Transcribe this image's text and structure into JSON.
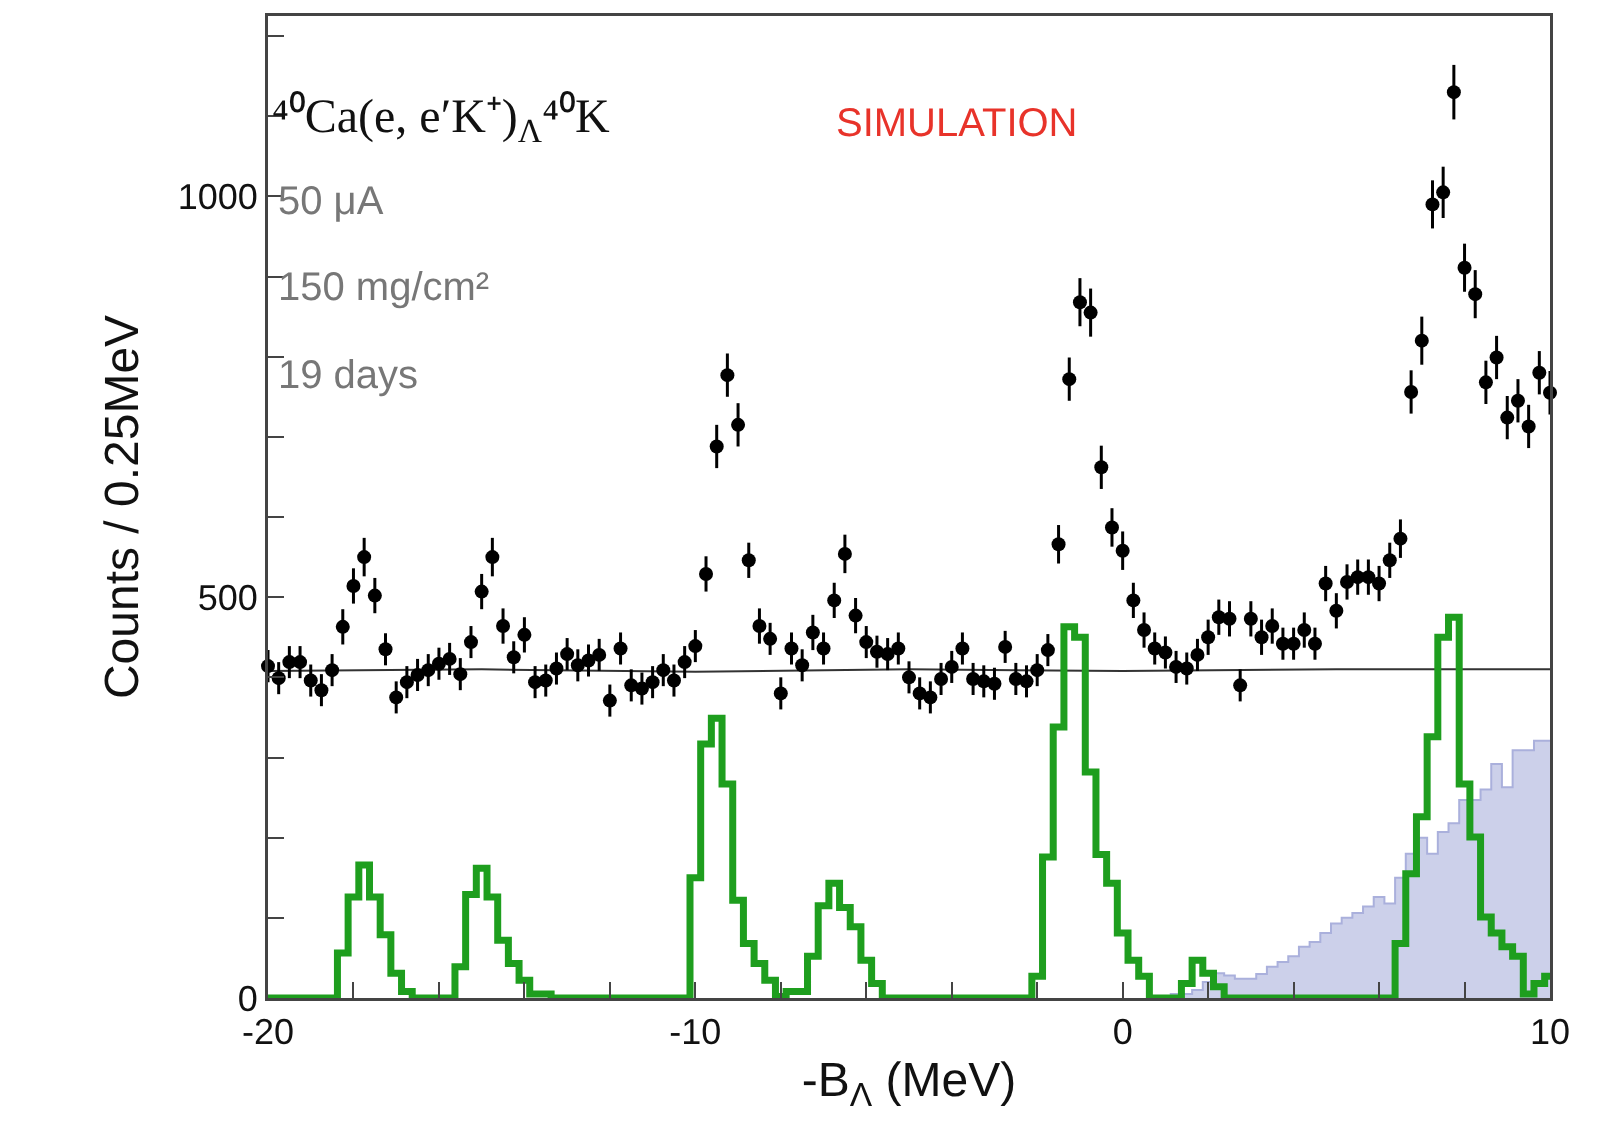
{
  "chart_data": {
    "type": "scatter",
    "xlabel": "-B$_{Λ}$ (MeV)",
    "ylabel": "Counts / 0.25MeV",
    "annotations": [
      "⁴⁰Ca(e, e′K⁺)$_{Λ}$⁴⁰K",
      "50 μA",
      "150 mg/cm²",
      "19 days",
      "SIMULATION"
    ],
    "x": [
      -20,
      -19.75,
      -19.5,
      -19.25,
      -19,
      -18.75,
      -18.5,
      -18.25,
      -18,
      -17.75,
      -17.5,
      -17.25,
      -17,
      -16.75,
      -16.5,
      -16.25,
      -16,
      -15.75,
      -15.5,
      -15.25,
      -15,
      -14.75,
      -14.5,
      -14.25,
      -14,
      -13.75,
      -13.5,
      -13.25,
      -13,
      -12.75,
      -12.5,
      -12.25,
      -12,
      -11.75,
      -11.5,
      -11.25,
      -11,
      -10.75,
      -10.5,
      -10.25,
      -10,
      -9.75,
      -9.5,
      -9.25,
      -9,
      -8.75,
      -8.5,
      -8.25,
      -8,
      -7.75,
      -7.5,
      -7.25,
      -7,
      -6.75,
      -6.5,
      -6.25,
      -6,
      -5.75,
      -5.5,
      -5.25,
      -5,
      -4.75,
      -4.5,
      -4.25,
      -4,
      -3.75,
      -3.5,
      -3.25,
      -3,
      -2.75,
      -2.5,
      -2.25,
      -2,
      -1.75,
      -1.5,
      -1.25,
      -1,
      -0.75,
      -0.5,
      -0.25,
      0,
      0.25,
      0.5,
      0.75,
      1,
      1.25,
      1.5,
      1.75,
      2,
      2.25,
      2.5,
      2.75,
      3,
      3.25,
      3.5,
      3.75,
      4,
      4.25,
      4.5,
      4.75,
      5,
      5.25,
      5.5,
      5.75,
      6,
      6.25,
      6.5,
      6.75,
      7,
      7.25,
      7.5,
      7.75,
      8,
      8.25,
      8.5,
      8.75,
      9,
      9.25,
      9.5,
      9.75,
      10
    ],
    "series": [
      {
        "type": "area",
        "color": "#aab0dc",
        "x": [
          1,
          1.25,
          1.5,
          1.75,
          2,
          2.25,
          2.5,
          2.75,
          3,
          3.25,
          3.5,
          3.75,
          4,
          4.25,
          4.5,
          4.75,
          5,
          5.25,
          5.5,
          5.75,
          6,
          6.25,
          6.5,
          6.75,
          7,
          7.25,
          7.5,
          7.75,
          8,
          8.25,
          8.5,
          8.75,
          9,
          9.25,
          9.5,
          9.75,
          10
        ],
        "values": [
          0,
          5,
          5,
          10,
          20,
          31,
          28,
          24,
          24,
          30,
          39,
          45,
          52,
          64,
          70,
          81,
          93,
          100,
          106,
          114,
          126,
          118,
          150,
          180,
          200,
          180,
          207,
          218,
          247,
          247,
          260,
          292,
          263,
          309,
          309,
          321,
          321
        ]
      },
      {
        "type": "line",
        "color": "#333333",
        "x": [
          -20,
          -15,
          -10,
          -5,
          0,
          5,
          10
        ],
        "values": [
          408,
          410,
          407,
          410,
          408,
          410,
          410
        ]
      },
      {
        "type": "step",
        "color": "#1e9e1e",
        "values": [
          0,
          0,
          0,
          0,
          0,
          0,
          0,
          56,
          126,
          166,
          126,
          79,
          31,
          8,
          0,
          0,
          0,
          0,
          39,
          129,
          162,
          126,
          72,
          43,
          22,
          5,
          5,
          0,
          0,
          0,
          0,
          0,
          0,
          0,
          0,
          0,
          0,
          0,
          0,
          0,
          150,
          317,
          349,
          267,
          122,
          68,
          43,
          22,
          2,
          8,
          8,
          52,
          115,
          143,
          113,
          89,
          47,
          18,
          0,
          0,
          0,
          0,
          0,
          0,
          0,
          0,
          0,
          0,
          0,
          0,
          0,
          0,
          27,
          176,
          338,
          463,
          450,
          282,
          179,
          143,
          81,
          47,
          27,
          0,
          0,
          0,
          18,
          47,
          31,
          14,
          0,
          0,
          0,
          0,
          0,
          0,
          0,
          0,
          0,
          0,
          0,
          0,
          0,
          0,
          0,
          0,
          68,
          155,
          226,
          326,
          450,
          475,
          267,
          201,
          101,
          81,
          64,
          52,
          5,
          18,
          27
        ]
      },
      {
        "color": "#000000",
        "marker": "circle",
        "values": [
          414,
          399,
          419,
          419,
          396,
          384,
          409,
          463,
          514,
          550,
          502,
          435,
          375,
          394,
          403,
          409,
          417,
          423,
          404,
          444,
          507,
          550,
          464,
          425,
          453,
          394,
          396,
          411,
          429,
          415,
          421,
          428,
          371,
          436,
          390,
          386,
          394,
          409,
          396,
          419,
          439,
          529,
          688,
          777,
          715,
          546,
          464,
          448,
          380,
          436,
          415,
          456,
          436,
          496,
          554,
          477,
          444,
          432,
          429,
          436,
          400,
          380,
          375,
          398,
          413,
          436,
          398,
          395,
          392,
          438,
          398,
          395,
          409,
          434,
          566,
          772,
          868,
          855,
          662,
          587,
          558,
          496,
          459,
          436,
          431,
          413,
          411,
          428,
          450,
          475,
          473,
          390,
          473,
          450,
          464,
          442,
          442,
          459,
          442,
          517,
          483,
          519,
          525,
          525,
          517,
          546,
          573,
          756,
          820,
          990,
          1005,
          1130,
          911,
          878,
          768,
          799,
          724,
          745,
          713,
          780,
          755
        ],
        "errors": [
          20,
          20,
          20,
          20,
          20,
          20,
          20,
          22,
          22,
          24,
          22,
          20,
          20,
          20,
          20,
          20,
          20,
          20,
          20,
          20,
          22,
          24,
          22,
          20,
          22,
          20,
          20,
          20,
          20,
          20,
          20,
          20,
          20,
          20,
          20,
          20,
          20,
          20,
          20,
          20,
          20,
          22,
          27,
          27,
          27,
          22,
          22,
          20,
          20,
          20,
          20,
          22,
          20,
          22,
          24,
          22,
          20,
          20,
          20,
          20,
          20,
          20,
          20,
          20,
          20,
          20,
          20,
          20,
          20,
          20,
          20,
          20,
          20,
          20,
          24,
          27,
          30,
          30,
          27,
          24,
          24,
          22,
          22,
          20,
          20,
          20,
          20,
          20,
          22,
          22,
          22,
          20,
          22,
          22,
          22,
          20,
          20,
          22,
          20,
          22,
          22,
          22,
          22,
          22,
          22,
          22,
          24,
          27,
          30,
          30,
          32,
          34,
          30,
          30,
          27,
          27,
          27,
          27,
          27,
          27,
          27
        ]
      }
    ],
    "line_style": "solid",
    "xlim": [
      -20,
      10
    ],
    "xticks": [
      -20,
      {
        "value": -18,
        "label": null
      },
      {
        "value": -16,
        "label": null
      },
      {
        "value": -14,
        "label": null
      },
      {
        "value": -12,
        "label": null
      },
      -10,
      {
        "value": -8,
        "label": null
      },
      {
        "value": -6,
        "label": null
      },
      {
        "value": -4,
        "label": null
      },
      {
        "value": -2,
        "label": null
      },
      0,
      {
        "value": 2,
        "label": null
      },
      {
        "value": 4,
        "label": null
      },
      {
        "value": 6,
        "label": null
      },
      {
        "value": 8,
        "label": null
      },
      10
    ],
    "ylim": [
      0,
      1225
    ],
    "yticks": [
      0,
      {
        "value": 100,
        "label": null
      },
      {
        "value": 200,
        "label": null
      },
      {
        "value": 300,
        "label": null
      },
      {
        "value": 400,
        "label": null
      },
      500,
      {
        "value": 600,
        "label": null
      },
      {
        "value": 700,
        "label": null
      },
      {
        "value": 800,
        "label": null
      },
      {
        "value": 900,
        "label": null
      },
      1000,
      {
        "value": 1100,
        "label": null
      },
      {
        "value": 1200,
        "label": null
      }
    ],
    "grid": false
  }
}
